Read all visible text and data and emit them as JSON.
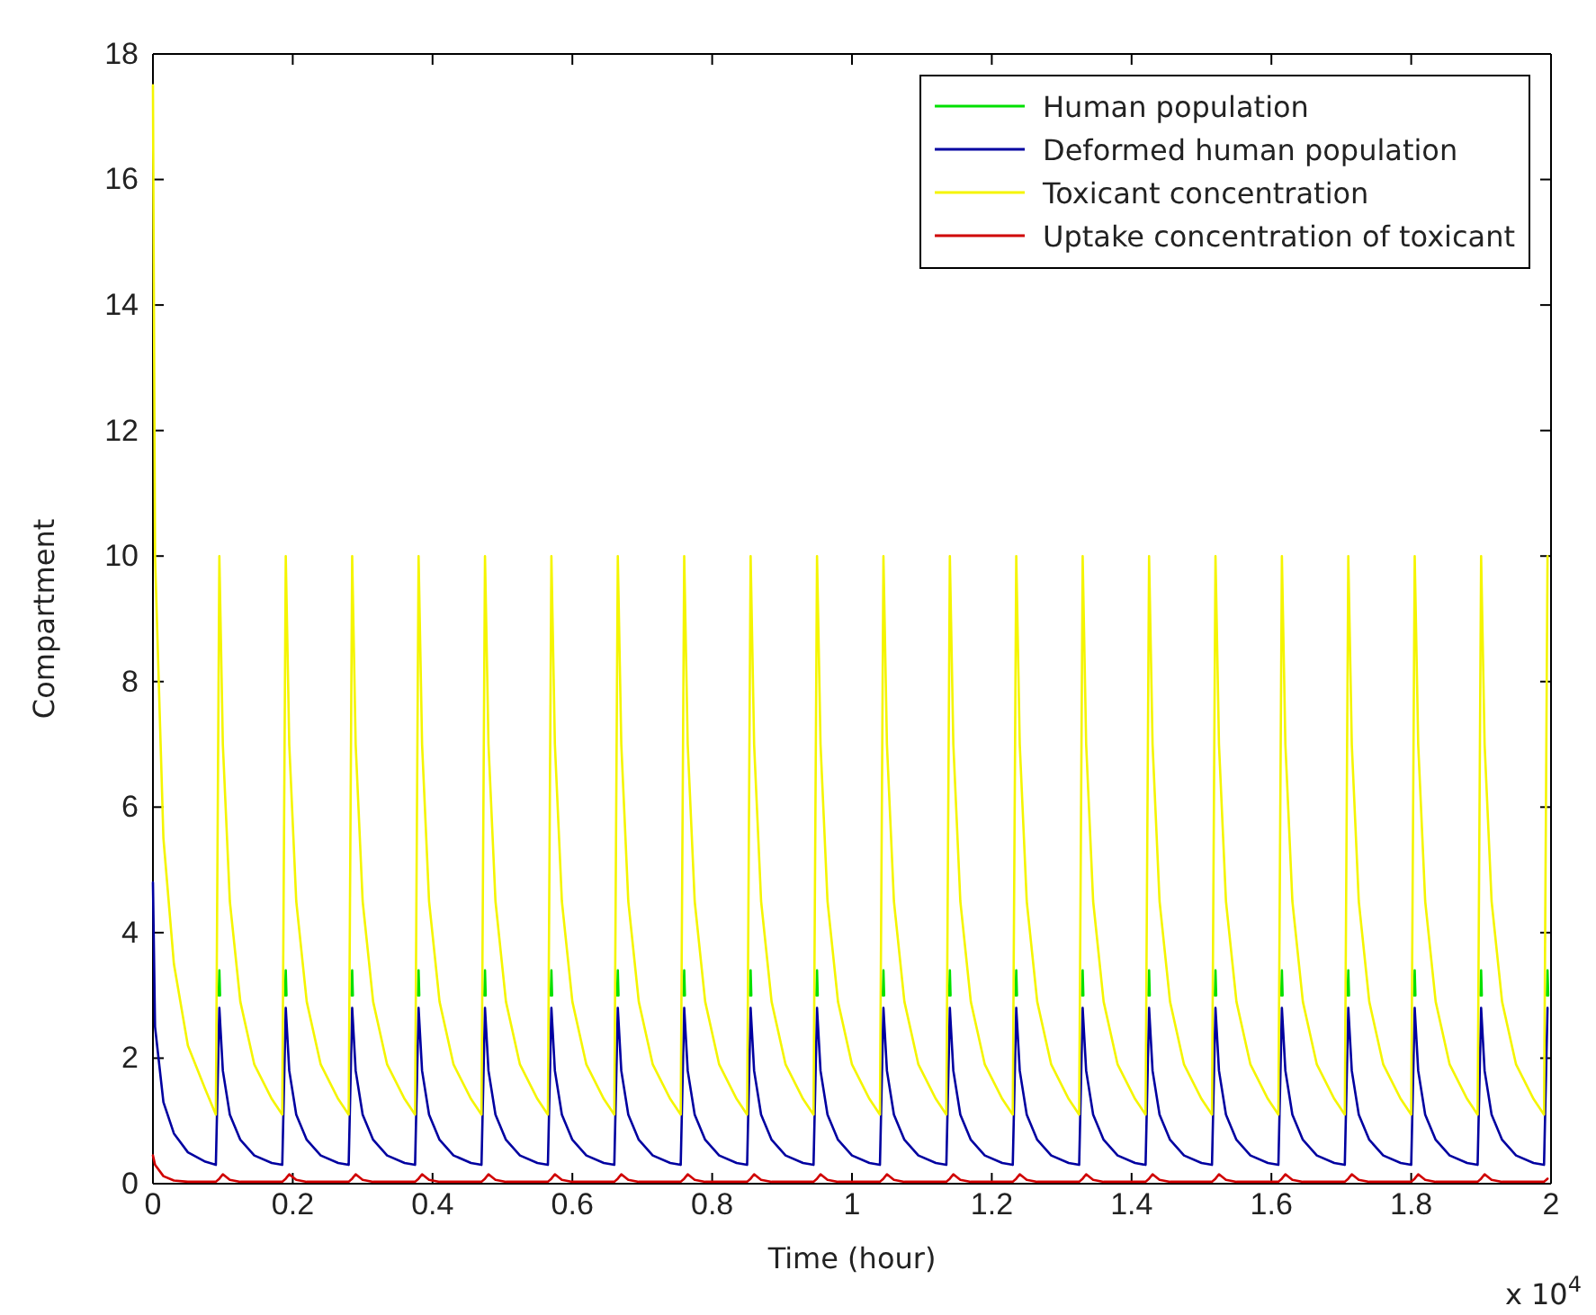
{
  "chart_data": {
    "type": "line",
    "xlabel": "Time (hour)",
    "ylabel": "Compartment",
    "annotations": [
      "x 10$^{4}$"
    ],
    "legend": "top right",
    "grid": false,
    "xlim": [
      0,
      2
    ],
    "ylim": [
      0,
      18
    ],
    "xticks": [
      0,
      0.2,
      0.4,
      0.6,
      0.8,
      1,
      1.2,
      1.4,
      1.6,
      1.8,
      2
    ],
    "yticks": [
      0,
      2,
      4,
      6,
      8,
      10,
      12,
      14,
      16,
      18
    ],
    "x": [
      0,
      0.003,
      0.015,
      0.03,
      0.05,
      0.075,
      0.09,
      0.095,
      0.1,
      0.11,
      0.125,
      0.145,
      0.17,
      0.185,
      0.19,
      0.195,
      0.205,
      0.22,
      0.24,
      0.265,
      0.28,
      0.285,
      0.29,
      0.3,
      0.315,
      0.335,
      0.36,
      0.375,
      0.38,
      0.385,
      0.395,
      0.41,
      0.43,
      0.455,
      0.47,
      0.475,
      0.48,
      0.49,
      0.505,
      0.525,
      0.55,
      0.565,
      0.57,
      0.575,
      0.585,
      0.6,
      0.62,
      0.645,
      0.66,
      0.665,
      0.67,
      0.68,
      0.695,
      0.715,
      0.74,
      0.755,
      0.76,
      0.765,
      0.775,
      0.79,
      0.81,
      0.835,
      0.85,
      0.855,
      0.86,
      0.87,
      0.885,
      0.905,
      0.93,
      0.945,
      0.95,
      0.955,
      0.965,
      0.98,
      1,
      1.025,
      1.04,
      1.045,
      1.05,
      1.06,
      1.075,
      1.095,
      1.12,
      1.135,
      1.14,
      1.145,
      1.155,
      1.17,
      1.19,
      1.215,
      1.23,
      1.235,
      1.24,
      1.25,
      1.265,
      1.285,
      1.31,
      1.325,
      1.33,
      1.335,
      1.345,
      1.36,
      1.38,
      1.405,
      1.42,
      1.425,
      1.43,
      1.44,
      1.455,
      1.475,
      1.5,
      1.515,
      1.52,
      1.525,
      1.535,
      1.55,
      1.57,
      1.595,
      1.61,
      1.615,
      1.62,
      1.63,
      1.645,
      1.665,
      1.69,
      1.705,
      1.71,
      1.715,
      1.725,
      1.74,
      1.76,
      1.785,
      1.8,
      1.805,
      1.81,
      1.82,
      1.835,
      1.855,
      1.88,
      1.895,
      1.9,
      1.905,
      1.915,
      1.93,
      1.95,
      1.975,
      1.99,
      1.995
    ],
    "series": [
      {
        "name": "Human population",
        "color": "#00e000",
        "x": [
          0.094,
          0.095,
          0.096,
          0.135,
          0.189,
          0.19,
          0.191,
          0.23,
          0.284,
          0.285,
          0.286,
          0.325,
          0.379,
          0.38,
          0.381,
          0.42,
          0.474,
          0.475,
          0.476,
          0.515,
          0.569,
          0.57,
          0.571,
          0.61,
          0.664,
          0.665,
          0.666,
          0.705,
          0.759,
          0.76,
          0.761,
          0.8,
          0.854,
          0.855,
          0.856,
          0.895,
          0.949,
          0.95,
          0.951,
          0.99,
          1.044,
          1.045,
          1.046,
          1.085,
          1.139,
          1.14,
          1.141,
          1.18,
          1.234,
          1.235,
          1.236,
          1.275,
          1.329,
          1.33,
          1.331,
          1.37,
          1.424,
          1.425,
          1.426,
          1.465,
          1.519,
          1.52,
          1.521,
          1.56,
          1.614,
          1.615,
          1.616,
          1.655,
          1.709,
          1.71,
          1.711,
          1.75,
          1.804,
          1.805,
          1.806,
          1.845,
          1.899,
          1.9,
          1.901,
          1.94,
          1.994,
          1.995,
          1.996
        ],
        "values": [
          3,
          3.4,
          3,
          null,
          3,
          3.4,
          3,
          null,
          3,
          3.4,
          3,
          null,
          3,
          3.4,
          3,
          null,
          3,
          3.4,
          3,
          null,
          3,
          3.4,
          3,
          null,
          3,
          3.4,
          3,
          null,
          3,
          3.4,
          3,
          null,
          3,
          3.4,
          3,
          null,
          3,
          3.4,
          3,
          null,
          3,
          3.4,
          3,
          null,
          3,
          3.4,
          3,
          null,
          3,
          3.4,
          3,
          null,
          3,
          3.4,
          3,
          null,
          3,
          3.4,
          3,
          null,
          3,
          3.4,
          3,
          null,
          3,
          3.4,
          3,
          null,
          3,
          3.4,
          3,
          null,
          3,
          3.4,
          3,
          null,
          3,
          3.4,
          3,
          null,
          3,
          3.4,
          3
        ]
      },
      {
        "name": "Deformed human population",
        "color": "#0000a0",
        "values": [
          4.8,
          2.5,
          1.3,
          0.8,
          0.5,
          0.35,
          0.3,
          2.8,
          1.8,
          1.1,
          0.7,
          0.45,
          0.33,
          0.3,
          2.8,
          1.8,
          1.1,
          0.7,
          0.45,
          0.33,
          0.3,
          2.8,
          1.8,
          1.1,
          0.7,
          0.45,
          0.33,
          0.3,
          2.8,
          1.8,
          1.1,
          0.7,
          0.45,
          0.33,
          0.3,
          2.8,
          1.8,
          1.1,
          0.7,
          0.45,
          0.33,
          0.3,
          2.8,
          1.8,
          1.1,
          0.7,
          0.45,
          0.33,
          0.3,
          2.8,
          1.8,
          1.1,
          0.7,
          0.45,
          0.33,
          0.3,
          2.8,
          1.8,
          1.1,
          0.7,
          0.45,
          0.33,
          0.3,
          2.8,
          1.8,
          1.1,
          0.7,
          0.45,
          0.33,
          0.3,
          2.8,
          1.8,
          1.1,
          0.7,
          0.45,
          0.33,
          0.3,
          2.8,
          1.8,
          1.1,
          0.7,
          0.45,
          0.33,
          0.3,
          2.8,
          1.8,
          1.1,
          0.7,
          0.45,
          0.33,
          0.3,
          2.8,
          1.8,
          1.1,
          0.7,
          0.45,
          0.33,
          0.3,
          2.8,
          1.8,
          1.1,
          0.7,
          0.45,
          0.33,
          0.3,
          2.8,
          1.8,
          1.1,
          0.7,
          0.45,
          0.33,
          0.3,
          2.8,
          1.8,
          1.1,
          0.7,
          0.45,
          0.33,
          0.3,
          2.8,
          1.8,
          1.1,
          0.7,
          0.45,
          0.33,
          0.3,
          2.8,
          1.8,
          1.1,
          0.7,
          0.45,
          0.33,
          0.3,
          2.8,
          1.8,
          1.1,
          0.7,
          0.45,
          0.33,
          0.3,
          2.8,
          1.8,
          1.1,
          0.7,
          0.45,
          0.33,
          0.3,
          2.8
        ]
      },
      {
        "name": "Toxicant concentration",
        "color": "#f5f500",
        "values": [
          17.5,
          10,
          5.5,
          3.5,
          2.2,
          1.5,
          1.1,
          10,
          7,
          4.5,
          2.9,
          1.9,
          1.35,
          1.1,
          10,
          7,
          4.5,
          2.9,
          1.9,
          1.35,
          1.1,
          10,
          7,
          4.5,
          2.9,
          1.9,
          1.35,
          1.1,
          10,
          7,
          4.5,
          2.9,
          1.9,
          1.35,
          1.1,
          10,
          7,
          4.5,
          2.9,
          1.9,
          1.35,
          1.1,
          10,
          7,
          4.5,
          2.9,
          1.9,
          1.35,
          1.1,
          10,
          7,
          4.5,
          2.9,
          1.9,
          1.35,
          1.1,
          10,
          7,
          4.5,
          2.9,
          1.9,
          1.35,
          1.1,
          10,
          7,
          4.5,
          2.9,
          1.9,
          1.35,
          1.1,
          10,
          7,
          4.5,
          2.9,
          1.9,
          1.35,
          1.1,
          10,
          7,
          4.5,
          2.9,
          1.9,
          1.35,
          1.1,
          10,
          7,
          4.5,
          2.9,
          1.9,
          1.35,
          1.1,
          10,
          7,
          4.5,
          2.9,
          1.9,
          1.35,
          1.1,
          10,
          7,
          4.5,
          2.9,
          1.9,
          1.35,
          1.1,
          10,
          7,
          4.5,
          2.9,
          1.9,
          1.35,
          1.1,
          10,
          7,
          4.5,
          2.9,
          1.9,
          1.35,
          1.1,
          10,
          7,
          4.5,
          2.9,
          1.9,
          1.35,
          1.1,
          10,
          7,
          4.5,
          2.9,
          1.9,
          1.35,
          1.1,
          10,
          7,
          4.5,
          2.9,
          1.9,
          1.35,
          1.1,
          10,
          7,
          4.5,
          2.9,
          1.9,
          1.35,
          1.1,
          10
        ]
      },
      {
        "name": "Uptake concentration of toxicant",
        "color": "#d00000",
        "values": [
          0.45,
          0.3,
          0.12,
          0.05,
          0.03,
          0.03,
          0.03,
          0.08,
          0.15,
          0.06,
          0.03,
          0.03,
          0.03,
          0.03,
          0.08,
          0.15,
          0.06,
          0.03,
          0.03,
          0.03,
          0.03,
          0.08,
          0.15,
          0.06,
          0.03,
          0.03,
          0.03,
          0.03,
          0.08,
          0.15,
          0.06,
          0.03,
          0.03,
          0.03,
          0.03,
          0.08,
          0.15,
          0.06,
          0.03,
          0.03,
          0.03,
          0.03,
          0.08,
          0.15,
          0.06,
          0.03,
          0.03,
          0.03,
          0.03,
          0.08,
          0.15,
          0.06,
          0.03,
          0.03,
          0.03,
          0.03,
          0.08,
          0.15,
          0.06,
          0.03,
          0.03,
          0.03,
          0.03,
          0.08,
          0.15,
          0.06,
          0.03,
          0.03,
          0.03,
          0.03,
          0.08,
          0.15,
          0.06,
          0.03,
          0.03,
          0.03,
          0.03,
          0.08,
          0.15,
          0.06,
          0.03,
          0.03,
          0.03,
          0.03,
          0.08,
          0.15,
          0.06,
          0.03,
          0.03,
          0.03,
          0.03,
          0.08,
          0.15,
          0.06,
          0.03,
          0.03,
          0.03,
          0.03,
          0.08,
          0.15,
          0.06,
          0.03,
          0.03,
          0.03,
          0.03,
          0.08,
          0.15,
          0.06,
          0.03,
          0.03,
          0.03,
          0.03,
          0.08,
          0.15,
          0.06,
          0.03,
          0.03,
          0.03,
          0.03,
          0.08,
          0.15,
          0.06,
          0.03,
          0.03,
          0.03,
          0.03,
          0.08,
          0.15,
          0.06,
          0.03,
          0.03,
          0.03,
          0.03,
          0.08,
          0.15,
          0.06,
          0.03,
          0.03,
          0.03,
          0.03,
          0.08,
          0.15,
          0.06,
          0.03,
          0.03,
          0.03,
          0.03,
          0.08
        ]
      }
    ]
  }
}
